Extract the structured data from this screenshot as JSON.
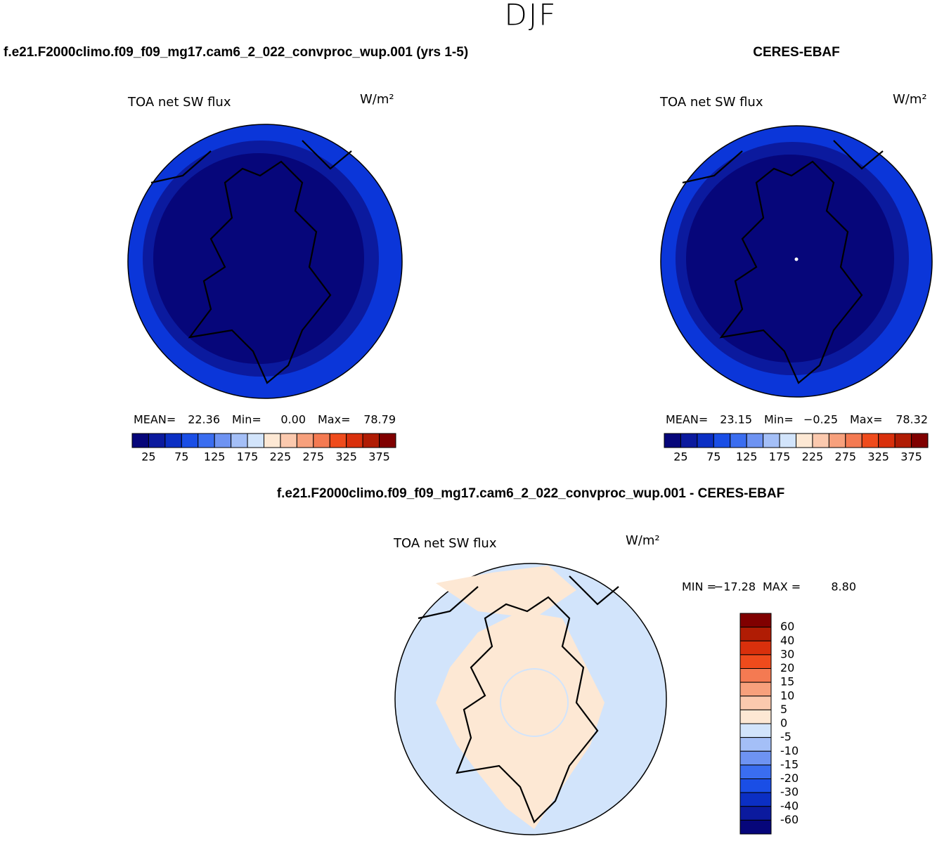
{
  "title": "DJF",
  "panels": [
    {
      "title": "f.e21.F2000climo.f09_f09_mg17.cam6_2_022_convproc_wup.001 (yrs 1-5)",
      "variable": "TOA net SW flux",
      "units": "W/m²",
      "stats_labels": [
        "MEAN=",
        "Min=",
        "Max="
      ],
      "stats_values": [
        "22.36",
        "0.00",
        "78.79"
      ],
      "colorbar": {
        "colors": [
          "#06067a",
          "#0b1a9e",
          "#0b2fc4",
          "#1a4ee6",
          "#3a6df0",
          "#6e93f2",
          "#a4bff7",
          "#d2e4fb",
          "#fde8d4",
          "#fbc9ae",
          "#f7a07c",
          "#f47a52",
          "#ef4b1c",
          "#d9300c",
          "#b01c04",
          "#800000"
        ],
        "labels": [
          25,
          75,
          125,
          175,
          225,
          275,
          325,
          375
        ]
      }
    },
    {
      "title": "CERES-EBAF",
      "variable": "TOA net SW flux",
      "units": "W/m²",
      "stats_labels": [
        "MEAN=",
        "Min=",
        "Max="
      ],
      "stats_values": [
        "23.15",
        "−0.25",
        "78.32"
      ],
      "colorbar": {
        "colors": [
          "#06067a",
          "#0b1a9e",
          "#0b2fc4",
          "#1a4ee6",
          "#3a6df0",
          "#6e93f2",
          "#a4bff7",
          "#d2e4fb",
          "#fde8d4",
          "#fbc9ae",
          "#f7a07c",
          "#f47a52",
          "#ef4b1c",
          "#d9300c",
          "#b01c04",
          "#800000"
        ],
        "labels": [
          25,
          75,
          125,
          175,
          225,
          275,
          325,
          375
        ]
      }
    },
    {
      "title": "f.e21.F2000climo.f09_f09_mg17.cam6_2_022_convproc_wup.001 - CERES-EBAF",
      "variable": "TOA net SW flux",
      "units": "W/m²",
      "stats_labels": [
        "MIN =",
        "MAX ="
      ],
      "stats_values": [
        "−17.28",
        "8.80"
      ],
      "colorbar": {
        "colors": [
          "#800000",
          "#b01c04",
          "#d9300c",
          "#ef4b1c",
          "#f47a52",
          "#f7a07c",
          "#fbc9ae",
          "#fde8d4",
          "#d2e4fb",
          "#a4bff7",
          "#6e93f2",
          "#3a6df0",
          "#1a4ee6",
          "#0b2fc4",
          "#0b1a9e",
          "#06067a"
        ],
        "labels": [
          60,
          40,
          30,
          20,
          15,
          10,
          5,
          0,
          -5,
          -10,
          -15,
          -20,
          -30,
          -40,
          -60
        ]
      }
    }
  ]
}
